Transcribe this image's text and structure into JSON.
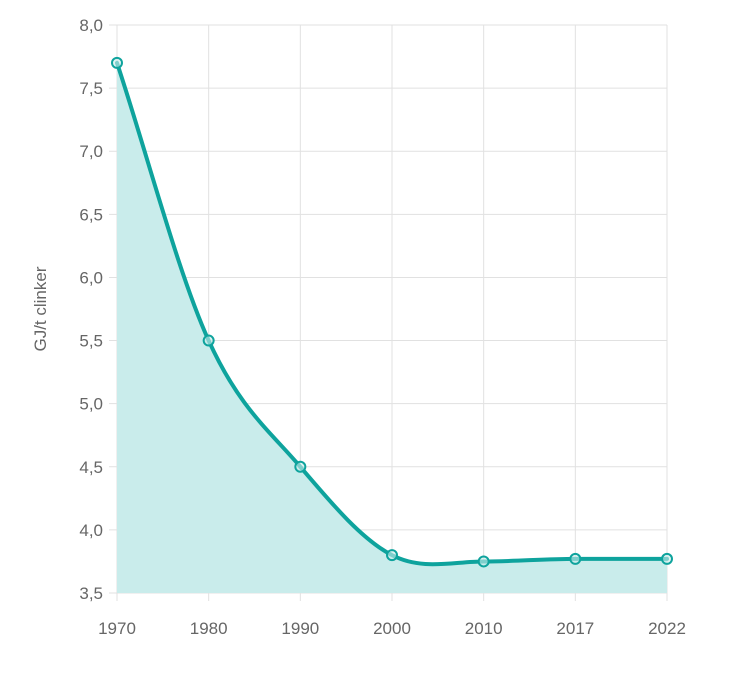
{
  "chart_data": {
    "type": "area",
    "title": "",
    "xlabel": "",
    "ylabel": "GJ/t clinker",
    "categories": [
      "1970",
      "1980",
      "1990",
      "2000",
      "2010",
      "2017",
      "2022"
    ],
    "series": [
      {
        "name": "GJ/t clinker",
        "values": [
          7.7,
          5.5,
          4.5,
          3.8,
          3.75,
          3.77,
          3.77
        ]
      }
    ],
    "ylim": [
      3.5,
      8.0
    ],
    "yticks": [
      "3,5",
      "4,0",
      "4,5",
      "5,0",
      "5,5",
      "6,0",
      "6,5",
      "7,0",
      "7,5",
      "8,0"
    ],
    "grid": true,
    "legend": "none",
    "colors": {
      "line": "#0ea39d",
      "fill": "#c9eceb",
      "grid": "#e1e1e1"
    }
  }
}
